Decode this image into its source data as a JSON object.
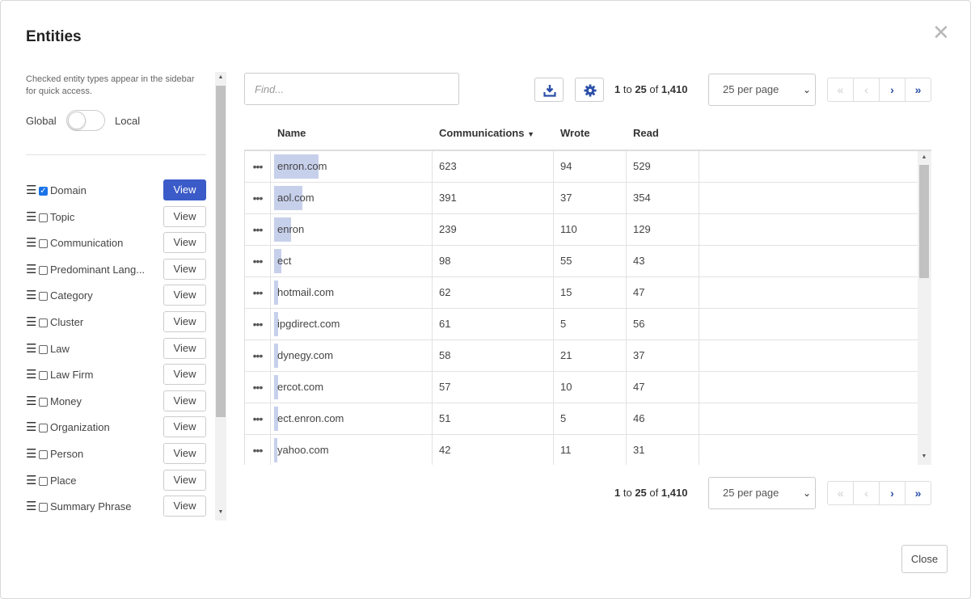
{
  "dialog": {
    "title": "Entities",
    "close_label": "Close"
  },
  "left": {
    "hint": "Checked entity types appear in the sidebar for quick access.",
    "toggle": {
      "left_label": "Global",
      "right_label": "Local",
      "state": "Global"
    },
    "view_label": "View",
    "entity_types": [
      {
        "label": "Domain",
        "checked": true,
        "active": true
      },
      {
        "label": "Topic",
        "checked": false
      },
      {
        "label": "Communication",
        "checked": false
      },
      {
        "label": "Predominant Lang...",
        "checked": false
      },
      {
        "label": "Category",
        "checked": false
      },
      {
        "label": "Cluster",
        "checked": false
      },
      {
        "label": "Law",
        "checked": false
      },
      {
        "label": "Law Firm",
        "checked": false
      },
      {
        "label": "Money",
        "checked": false
      },
      {
        "label": "Organization",
        "checked": false
      },
      {
        "label": "Person",
        "checked": false
      },
      {
        "label": "Place",
        "checked": false
      },
      {
        "label": "Summary Phrase",
        "checked": false
      }
    ]
  },
  "toolbar": {
    "find_placeholder": "Find...",
    "download_icon": "download-icon",
    "settings_icon": "gear-icon",
    "range_from": "1",
    "range_to_word": "to",
    "range_to": "25",
    "range_of_word": "of",
    "range_total": "1,410",
    "per_page": "25 per page",
    "pager": {
      "first": "«",
      "prev": "‹",
      "next": "›",
      "last": "»"
    }
  },
  "table": {
    "columns": {
      "name": "Name",
      "communications": "Communications",
      "wrote": "Wrote",
      "read": "Read"
    },
    "sort_column": "communications",
    "max_comm": 623,
    "rows": [
      {
        "menu": "•••",
        "name": "enron.com",
        "communications": "623",
        "wrote": "94",
        "read": "529"
      },
      {
        "menu": "•••",
        "name": "aol.com",
        "communications": "391",
        "wrote": "37",
        "read": "354"
      },
      {
        "menu": "•••",
        "name": "enron",
        "communications": "239",
        "wrote": "110",
        "read": "129"
      },
      {
        "menu": "•••",
        "name": "ect",
        "communications": "98",
        "wrote": "55",
        "read": "43"
      },
      {
        "menu": "•••",
        "name": "hotmail.com",
        "communications": "62",
        "wrote": "15",
        "read": "47"
      },
      {
        "menu": "•••",
        "name": "ipgdirect.com",
        "communications": "61",
        "wrote": "5",
        "read": "56"
      },
      {
        "menu": "•••",
        "name": "dynegy.com",
        "communications": "58",
        "wrote": "21",
        "read": "37"
      },
      {
        "menu": "•••",
        "name": "ercot.com",
        "communications": "57",
        "wrote": "10",
        "read": "47"
      },
      {
        "menu": "•••",
        "name": "ect.enron.com",
        "communications": "51",
        "wrote": "5",
        "read": "46"
      },
      {
        "menu": "•••",
        "name": "yahoo.com",
        "communications": "42",
        "wrote": "11",
        "read": "31"
      }
    ]
  },
  "colors": {
    "accent": "#3b5bc9",
    "bar": "#c7d0eb"
  }
}
